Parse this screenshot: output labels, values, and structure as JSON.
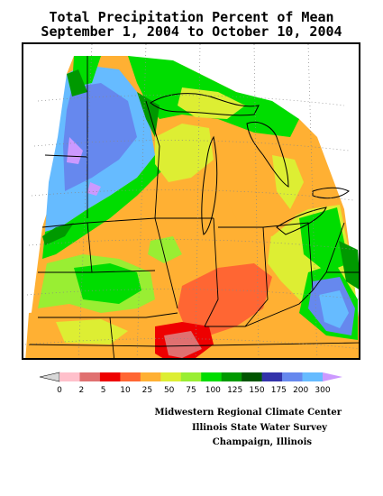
{
  "title": {
    "line1": "Total Precipitation Percent of Mean",
    "line2": "September 1, 2004 to October 10, 2004"
  },
  "legend": {
    "colors": [
      "#d8d8d8",
      "#ffc0cb",
      "#e07070",
      "#ee0000",
      "#ff6633",
      "#ffb033",
      "#ddee33",
      "#99ee33",
      "#00dd00",
      "#009900",
      "#005500",
      "#3333aa",
      "#6688ee",
      "#66bbff",
      "#cc99ff"
    ],
    "labels": [
      "0",
      "2",
      "5",
      "10",
      "25",
      "50",
      "75",
      "100",
      "125",
      "150",
      "175",
      "200",
      "300"
    ]
  },
  "credits": {
    "line1": "Midwestern Regional Climate Center",
    "line2": "Illinois State Water Survey",
    "line3": "Champaign, Illinois"
  }
}
